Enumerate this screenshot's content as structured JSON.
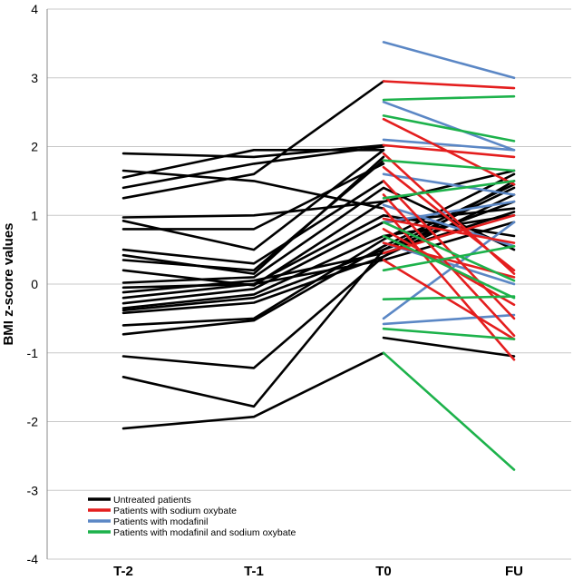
{
  "chart_data": {
    "type": "line",
    "ylabel": "BMI z-score values",
    "xlabel": "",
    "categories": [
      "T-2",
      "T-1",
      "T0",
      "FU"
    ],
    "ylim": [
      -4,
      4
    ],
    "yticks": [
      "4",
      "3",
      "2",
      "1",
      "0",
      "-1",
      "-2",
      "-3",
      "-4"
    ],
    "grid": "horizontal",
    "legend_position": "bottom-left",
    "legend": [
      {
        "label": "Untreated patients",
        "color": "#000000"
      },
      {
        "label": "Patients with sodium oxybate",
        "color": "#e41e1e"
      },
      {
        "label": "Patients with modafinil",
        "color": "#5b87c5"
      },
      {
        "label": "Patients with modafinil and sodium oxybate",
        "color": "#1db24b"
      }
    ],
    "series": [
      {
        "group": 0,
        "values": [
          -2.1,
          -1.93,
          -1.0,
          null
        ]
      },
      {
        "group": 0,
        "values": [
          -1.35,
          -1.78,
          0.5,
          1.4
        ]
      },
      {
        "group": 0,
        "values": [
          -1.05,
          -1.22,
          0.4,
          1.3
        ]
      },
      {
        "group": 0,
        "values": [
          -0.73,
          -0.53,
          0.55,
          1.45
        ]
      },
      {
        "group": 0,
        "values": [
          -0.6,
          -0.5,
          0.65,
          1.6
        ]
      },
      {
        "group": 0,
        "values": [
          -0.42,
          -0.27,
          0.4,
          1.5
        ]
      },
      {
        "group": 0,
        "values": [
          -0.38,
          -0.2,
          0.5,
          1.2
        ]
      },
      {
        "group": 0,
        "values": [
          -0.35,
          -0.15,
          0.7,
          1.0
        ]
      },
      {
        "group": 0,
        "values": [
          -0.28,
          -0.07,
          0.9,
          1.1
        ]
      },
      {
        "group": 0,
        "values": [
          -0.2,
          0.0,
          1.0,
          0.7
        ]
      },
      {
        "group": 0,
        "values": [
          -0.12,
          0.05,
          0.45,
          1.05
        ]
      },
      {
        "group": 0,
        "values": [
          -0.05,
          0.0,
          0.35,
          0.9
        ]
      },
      {
        "group": 0,
        "values": [
          0.02,
          0.1,
          1.4,
          0.5
        ]
      },
      {
        "group": 0,
        "values": [
          0.2,
          -0.02,
          1.2,
          1.65
        ]
      },
      {
        "group": 0,
        "values": [
          0.35,
          0.2,
          1.8,
          null
        ]
      },
      {
        "group": 0,
        "values": [
          0.42,
          0.15,
          1.85,
          null
        ]
      },
      {
        "group": 0,
        "values": [
          0.5,
          0.3,
          1.5,
          null
        ]
      },
      {
        "group": 0,
        "values": [
          0.8,
          0.8,
          1.75,
          null
        ]
      },
      {
        "group": 0,
        "values": [
          0.92,
          0.5,
          1.95,
          null
        ]
      },
      {
        "group": 0,
        "values": [
          0.97,
          1.0,
          1.2,
          null
        ]
      },
      {
        "group": 0,
        "values": [
          1.25,
          1.6,
          2.95,
          null
        ]
      },
      {
        "group": 0,
        "values": [
          1.4,
          1.75,
          2.0,
          null
        ]
      },
      {
        "group": 0,
        "values": [
          1.55,
          1.95,
          1.95,
          null
        ]
      },
      {
        "group": 0,
        "values": [
          1.65,
          1.5,
          1.1,
          null
        ]
      },
      {
        "group": 0,
        "values": [
          1.9,
          1.85,
          2.02,
          null
        ]
      },
      {
        "group": 0,
        "values": [
          null,
          null,
          -0.78,
          -1.05
        ]
      },
      {
        "group": 1,
        "values": [
          null,
          null,
          2.95,
          2.85
        ]
      },
      {
        "group": 1,
        "values": [
          null,
          null,
          2.4,
          1.45
        ]
      },
      {
        "group": 1,
        "values": [
          null,
          null,
          2.02,
          1.85
        ]
      },
      {
        "group": 1,
        "values": [
          null,
          null,
          1.9,
          0.15
        ]
      },
      {
        "group": 1,
        "values": [
          null,
          null,
          1.7,
          0.2
        ]
      },
      {
        "group": 1,
        "values": [
          null,
          null,
          1.5,
          -0.5
        ]
      },
      {
        "group": 1,
        "values": [
          null,
          null,
          1.3,
          -0.75
        ]
      },
      {
        "group": 1,
        "values": [
          null,
          null,
          1.1,
          -1.1
        ]
      },
      {
        "group": 1,
        "values": [
          null,
          null,
          0.95,
          0.6
        ]
      },
      {
        "group": 1,
        "values": [
          null,
          null,
          0.8,
          -0.3
        ]
      },
      {
        "group": 1,
        "values": [
          null,
          null,
          0.6,
          0.1
        ]
      },
      {
        "group": 1,
        "values": [
          null,
          null,
          0.45,
          1.0
        ]
      },
      {
        "group": 1,
        "values": [
          null,
          null,
          0.35,
          -0.8
        ]
      },
      {
        "group": 2,
        "values": [
          null,
          null,
          3.52,
          3.0
        ]
      },
      {
        "group": 2,
        "values": [
          null,
          null,
          2.65,
          1.95
        ]
      },
      {
        "group": 2,
        "values": [
          null,
          null,
          2.1,
          1.95
        ]
      },
      {
        "group": 2,
        "values": [
          null,
          null,
          1.6,
          1.3
        ]
      },
      {
        "group": 2,
        "values": [
          null,
          null,
          1.15,
          0.55
        ]
      },
      {
        "group": 2,
        "values": [
          null,
          null,
          0.9,
          1.2
        ]
      },
      {
        "group": 2,
        "values": [
          null,
          null,
          0.6,
          0.0
        ]
      },
      {
        "group": 2,
        "values": [
          null,
          null,
          -0.5,
          0.9
        ]
      },
      {
        "group": 2,
        "values": [
          null,
          null,
          -0.58,
          -0.45
        ]
      },
      {
        "group": 3,
        "values": [
          null,
          null,
          2.68,
          2.73
        ]
      },
      {
        "group": 3,
        "values": [
          null,
          null,
          2.45,
          2.08
        ]
      },
      {
        "group": 3,
        "values": [
          null,
          null,
          1.8,
          1.65
        ]
      },
      {
        "group": 3,
        "values": [
          null,
          null,
          1.25,
          1.5
        ]
      },
      {
        "group": 3,
        "values": [
          null,
          null,
          0.9,
          0.05
        ]
      },
      {
        "group": 3,
        "values": [
          null,
          null,
          0.7,
          -0.2
        ]
      },
      {
        "group": 3,
        "values": [
          null,
          null,
          0.2,
          0.55
        ]
      },
      {
        "group": 3,
        "values": [
          null,
          null,
          -0.22,
          -0.18
        ]
      },
      {
        "group": 3,
        "values": [
          null,
          null,
          -0.65,
          -0.8
        ]
      },
      {
        "group": 3,
        "values": [
          null,
          null,
          -1.0,
          -2.7
        ]
      }
    ]
  }
}
